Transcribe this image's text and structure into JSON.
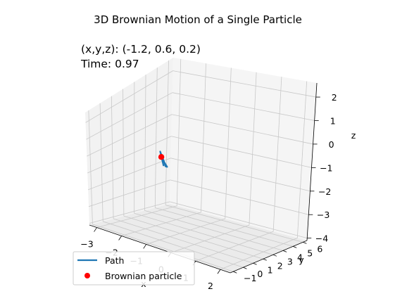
{
  "chart_data": {
    "type": "line3d",
    "title": "3D Brownian Motion of a Single Particle",
    "status": {
      "position_text": "(x,y,z): (-1.2, 0.6, 0.2)",
      "time_text": "Time: 0.97"
    },
    "axes": {
      "x": {
        "label": "x",
        "range": [
          -3.3,
          2.4
        ],
        "ticks": [
          -3,
          -2,
          -1,
          0,
          1,
          2
        ],
        "tick_labels": [
          "−3",
          "−2",
          "−1",
          "0",
          "1",
          "2"
        ]
      },
      "y": {
        "label": "y",
        "range": [
          -1.3,
          6.4
        ],
        "ticks": [
          -1,
          0,
          1,
          2,
          3,
          4,
          5,
          6
        ],
        "tick_labels": [
          "−1",
          "0",
          "1",
          "2",
          "3",
          "4",
          "5",
          "6"
        ]
      },
      "z": {
        "label": "z",
        "range": [
          -4.1,
          2.6
        ],
        "ticks": [
          -4,
          -3,
          -2,
          -1,
          0,
          1,
          2
        ],
        "tick_labels": [
          "−4",
          "−3",
          "−2",
          "−1",
          "0",
          "1",
          "2"
        ]
      }
    },
    "grid": true,
    "series": [
      {
        "name": "Path",
        "kind": "line",
        "color": "#1f77b4",
        "points": [
          [
            -1.05,
            0.45,
            -0.15
          ],
          [
            -1.35,
            0.85,
            0.35
          ],
          [
            -1.2,
            0.7,
            0.15
          ],
          [
            -1.05,
            0.55,
            -0.05
          ],
          [
            -0.95,
            0.4,
            -0.15
          ],
          [
            -0.8,
            0.2,
            -0.05
          ],
          [
            -1.0,
            0.45,
            0.0
          ],
          [
            -1.15,
            0.6,
            0.1
          ],
          [
            -1.2,
            0.6,
            0.2
          ]
        ]
      },
      {
        "name": "Brownian particle",
        "kind": "marker",
        "color": "#ff0000",
        "points": [
          [
            -1.2,
            0.6,
            0.2
          ]
        ]
      }
    ],
    "legend": {
      "placement": "lower-left"
    }
  }
}
